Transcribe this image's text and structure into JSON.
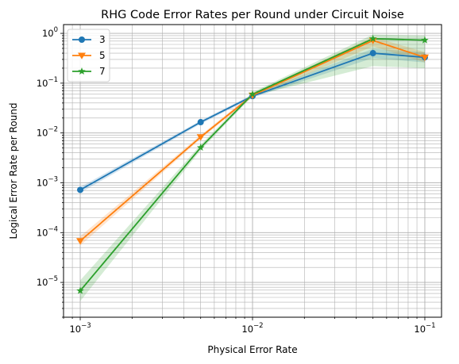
{
  "chart_data": {
    "type": "line",
    "title": "RHG Code Error Rates per Round under Circuit Noise",
    "xlabel": "Physical Error Rate",
    "ylabel": "Logical Error Rate per Round",
    "x_scale": "log",
    "y_scale": "log",
    "xlim": [
      0.0008,
      0.125
    ],
    "ylim": [
      2e-06,
      1.5
    ],
    "grid": "both major and minor",
    "legend_position": "top-left",
    "x": [
      0.001,
      0.005,
      0.01,
      0.05,
      0.1
    ],
    "x_ticks": [
      {
        "value": 0.001,
        "base": "10",
        "exp": "−3"
      },
      {
        "value": 0.01,
        "base": "10",
        "exp": "−2"
      },
      {
        "value": 0.1,
        "base": "10",
        "exp": "−1"
      }
    ],
    "y_ticks": [
      {
        "value": 1e-05,
        "base": "10",
        "exp": "−5"
      },
      {
        "value": 0.0001,
        "base": "10",
        "exp": "−4"
      },
      {
        "value": 0.001,
        "base": "10",
        "exp": "−3"
      },
      {
        "value": 0.01,
        "base": "10",
        "exp": "−2"
      },
      {
        "value": 0.1,
        "base": "10",
        "exp": "−1"
      },
      {
        "value": 1,
        "base": "10",
        "exp": "0"
      }
    ],
    "series": [
      {
        "name": "3",
        "color": "#1f77b4",
        "marker": "circle",
        "values": [
          0.00072,
          0.0165,
          0.055,
          0.4,
          0.33
        ],
        "band_low": [
          0.00063,
          0.0152,
          0.051,
          0.32,
          0.26
        ],
        "band_high": [
          0.00082,
          0.0178,
          0.059,
          0.49,
          0.42
        ]
      },
      {
        "name": "5",
        "color": "#ff7f0e",
        "marker": "triangle-down",
        "values": [
          6.8e-05,
          0.0083,
          0.057,
          0.72,
          0.33
        ],
        "band_low": [
          5.5e-05,
          0.0076,
          0.052,
          0.55,
          0.26
        ],
        "band_high": [
          8.4e-05,
          0.0091,
          0.062,
          0.85,
          0.42
        ]
      },
      {
        "name": "7",
        "color": "#2ca02c",
        "marker": "star",
        "values": [
          6.8e-06,
          0.0051,
          0.06,
          0.78,
          0.73
        ],
        "band_low": [
          4.2e-06,
          0.0045,
          0.055,
          0.22,
          0.2
        ],
        "band_high": [
          1.1e-05,
          0.0058,
          0.066,
          0.95,
          0.9
        ]
      }
    ]
  }
}
